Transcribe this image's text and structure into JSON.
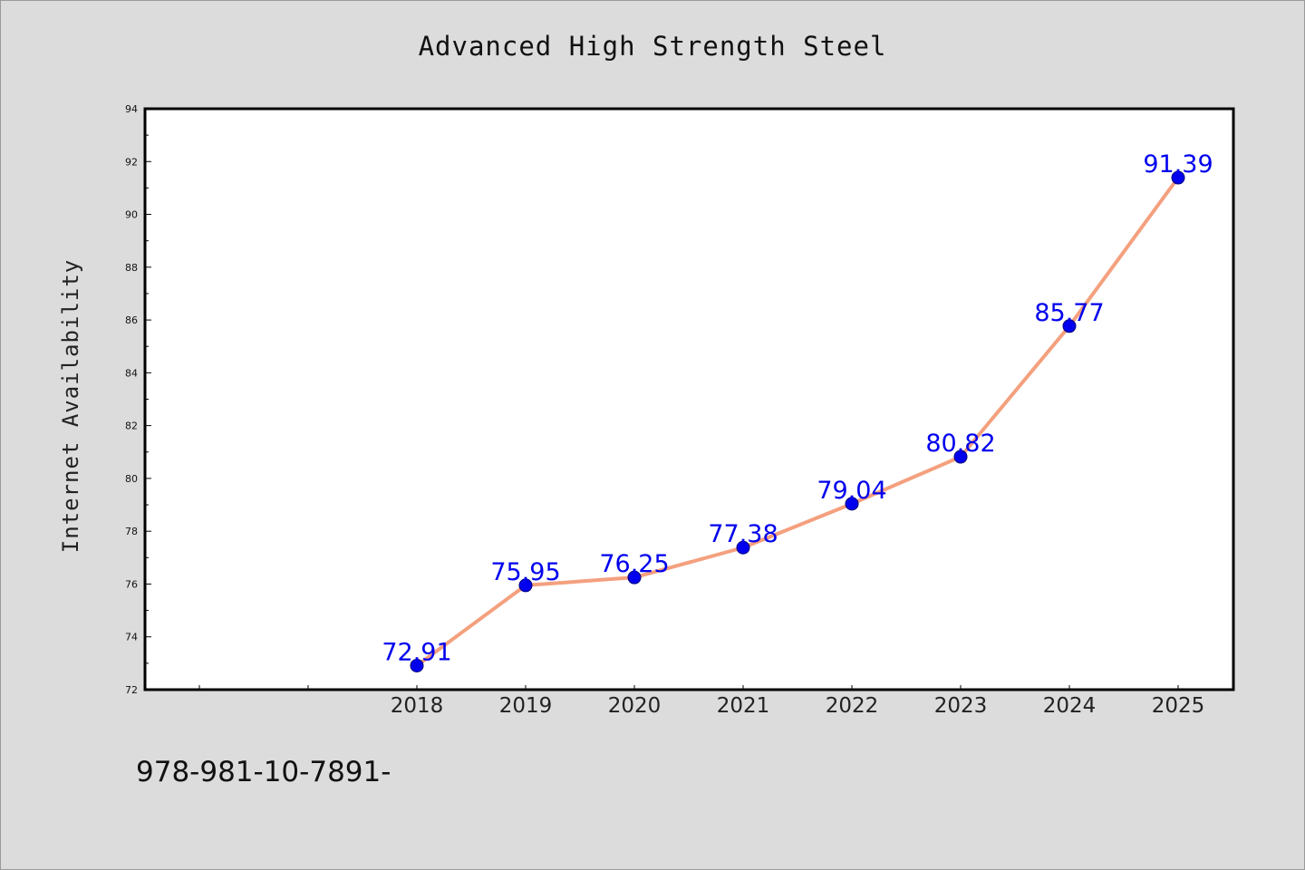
{
  "chart_data": {
    "type": "line",
    "title": "Advanced High Strength Steel",
    "xlabel": "",
    "ylabel": "Internet Availability",
    "categories": [
      "2018",
      "2019",
      "2020",
      "2021",
      "2022",
      "2023",
      "2024",
      "2025"
    ],
    "series": [
      {
        "values": [
          72.91,
          75.95,
          76.25,
          77.38,
          79.04,
          80.82,
          85.77,
          91.39
        ],
        "labels": [
          "72.91",
          "75.95",
          "76.25",
          "77.38",
          "79.04",
          "80.82",
          "85.77",
          "91.39"
        ]
      }
    ],
    "ylim": [
      72,
      94
    ],
    "yticks": [
      "72",
      "74",
      "76",
      "78",
      "80",
      "82",
      "84",
      "86",
      "88",
      "90",
      "92",
      "94"
    ],
    "grid": false,
    "legend": "none",
    "line_color": "#f4a07e",
    "marker_color": "#0000ee",
    "label_color": "#0000ee",
    "background_color": "#dcdcdc",
    "plot_background": "#ffffff"
  },
  "footnote": "978-981-10-7891-"
}
